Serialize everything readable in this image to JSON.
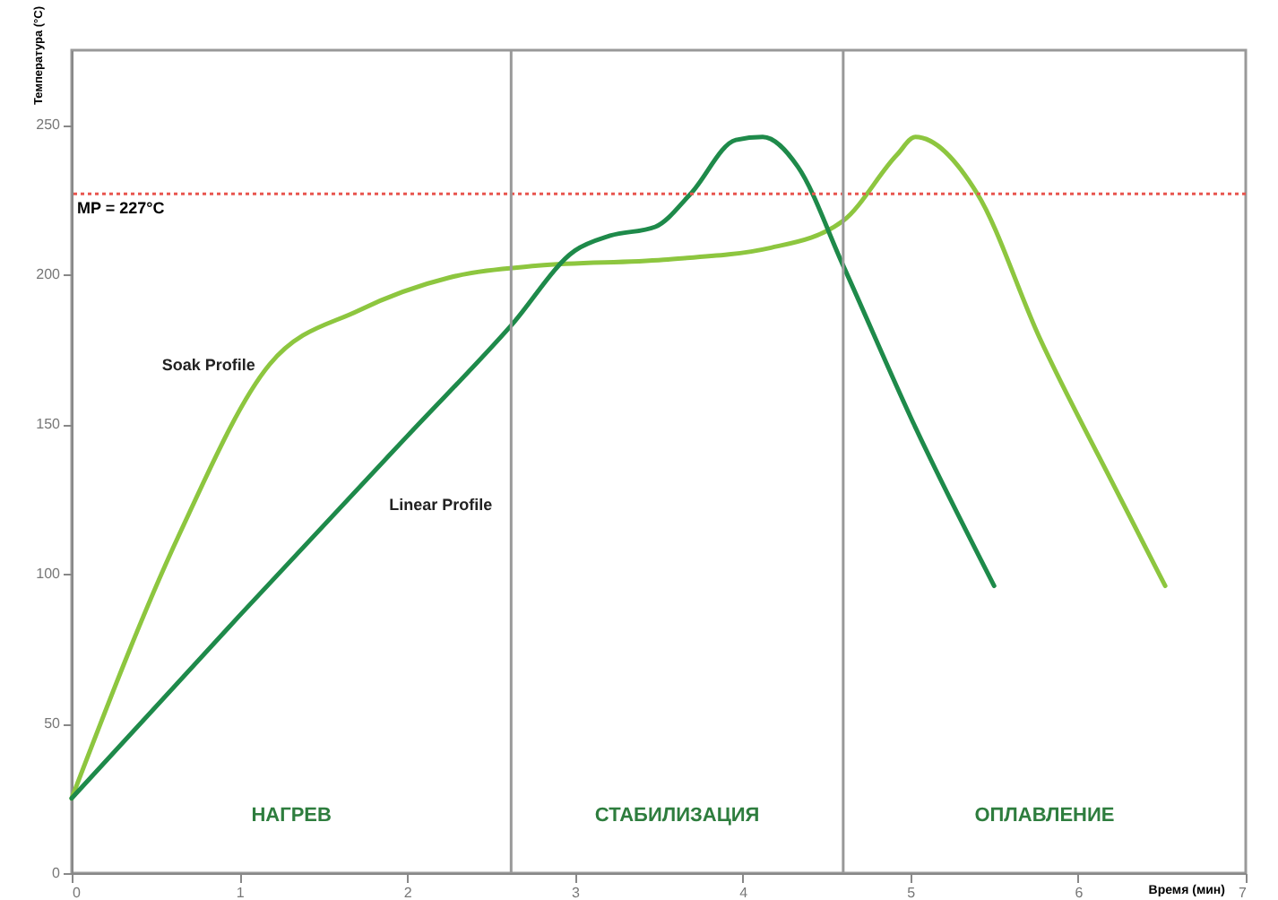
{
  "chart_data": {
    "type": "line",
    "xlabel": "Время (мин)",
    "ylabel": "Температура (°C)",
    "xlim": [
      0,
      7
    ],
    "xticks": [
      0,
      1,
      2,
      3,
      4,
      5,
      6,
      7
    ],
    "ylim": [
      0,
      275
    ],
    "yticks": [
      0,
      50,
      100,
      150,
      200,
      250
    ],
    "grid": false,
    "marker": "none",
    "line_style": "solid",
    "series": [
      {
        "name": "Soak Profile",
        "color": "#8dc63f",
        "x": [
          0,
          0.64,
          1.18,
          1.71,
          2.25,
          2.78,
          3.53,
          4.17,
          4.6,
          4.92,
          5.03,
          5.4,
          5.77,
          6.2,
          6.52
        ],
        "values": [
          25,
          113,
          170,
          188,
          199,
          203,
          205,
          209,
          218,
          240,
          246,
          227,
          179,
          131,
          96
        ]
      },
      {
        "name": "Linear Profile",
        "color": "#1e8a4a",
        "x": [
          0,
          1.0,
          2.0,
          2.62,
          3.0,
          3.21,
          3.48,
          3.69,
          3.96,
          4.12,
          4.33,
          4.6,
          5.03,
          5.5
        ],
        "values": [
          25,
          86,
          146,
          183,
          208,
          213,
          216,
          227,
          245,
          246,
          236,
          203,
          149,
          96
        ]
      }
    ],
    "ref_lines": [
      {
        "axis": "y",
        "value": 227,
        "label": "MP = 227°C",
        "color": "#e8554e",
        "line_style": "dotted"
      },
      {
        "axis": "x",
        "value": 2.62,
        "color": "#999999",
        "line_style": "solid"
      },
      {
        "axis": "x",
        "value": 4.6,
        "color": "#999999",
        "line_style": "solid"
      }
    ],
    "annotations": [
      "НАГРЕВ",
      "СТАБИЛИЗАЦИЯ",
      "ОПЛАВЛЕНИЕ"
    ]
  }
}
